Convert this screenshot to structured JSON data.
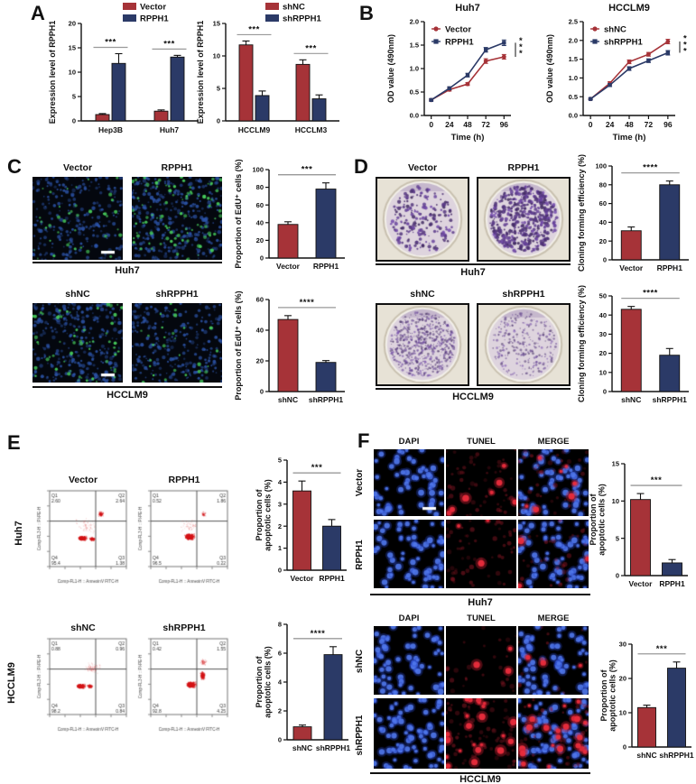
{
  "colors": {
    "red": "#A63338",
    "navy": "#2B3A67"
  },
  "panels": {
    "a": {
      "label": "A",
      "chart1": {
        "ylabel": "Expression level of RPPH1",
        "ylim": [
          0,
          20
        ],
        "yticks": [
          "0",
          "5",
          "10",
          "15",
          "20"
        ],
        "categories": [
          "Hep3B",
          "Huh7"
        ],
        "series": [
          {
            "name": "Vector",
            "color": "red",
            "values": [
              1.3,
              2.0
            ],
            "errors": [
              0.2,
              0.25
            ]
          },
          {
            "name": "RPPH1",
            "color": "navy",
            "values": [
              11.8,
              13.1
            ],
            "errors": [
              2.0,
              0.35
            ]
          }
        ],
        "sig": [
          "***",
          "***"
        ]
      },
      "chart2": {
        "ylabel": "Expression level of RPPH1",
        "ylim": [
          0,
          15
        ],
        "yticks": [
          "0",
          "5",
          "10",
          "15"
        ],
        "categories": [
          "HCCLM9",
          "HCCLM3"
        ],
        "series": [
          {
            "name": "shNC",
            "color": "red",
            "values": [
              11.7,
              8.7
            ],
            "errors": [
              0.6,
              0.7
            ]
          },
          {
            "name": "shRPPH1",
            "color": "navy",
            "values": [
              3.9,
              3.4
            ],
            "errors": [
              0.7,
              0.6
            ]
          }
        ],
        "sig": [
          "***",
          "***"
        ]
      }
    },
    "b": {
      "label": "B",
      "chart1": {
        "title": "Huh7",
        "ylabel": "OD value (490nm)",
        "xlabel": "Time (h)",
        "ylim": [
          0,
          2.0
        ],
        "yticks": [
          "0.0",
          "0.5",
          "1.0",
          "1.5",
          "2.0"
        ],
        "x": [
          "0",
          "24",
          "48",
          "72",
          "96"
        ],
        "series": [
          {
            "name": "Vector",
            "color": "red",
            "marker": "circle",
            "values": [
              0.33,
              0.55,
              0.67,
              1.16,
              1.25
            ],
            "errors": [
              0.02,
              0.03,
              0.03,
              0.05,
              0.05
            ]
          },
          {
            "name": "RPPH1",
            "color": "navy",
            "marker": "square",
            "values": [
              0.33,
              0.58,
              0.86,
              1.4,
              1.55
            ],
            "errors": [
              0.02,
              0.03,
              0.04,
              0.05,
              0.06
            ]
          }
        ],
        "sig": "***"
      },
      "chart2": {
        "title": "HCCLM9",
        "ylabel": "OD value (490nm)",
        "xlabel": "Time (h)",
        "ylim": [
          0,
          2.5
        ],
        "yticks": [
          "0.0",
          "0.5",
          "1.0",
          "1.5",
          "2.0",
          "2.5"
        ],
        "x": [
          "0",
          "24",
          "48",
          "72",
          "96"
        ],
        "series": [
          {
            "name": "shNC",
            "color": "red",
            "marker": "circle",
            "values": [
              0.44,
              0.86,
              1.43,
              1.63,
              1.97
            ],
            "errors": [
              0.02,
              0.04,
              0.05,
              0.05,
              0.06
            ]
          },
          {
            "name": "shRPPH1",
            "color": "navy",
            "marker": "square",
            "values": [
              0.44,
              0.81,
              1.25,
              1.46,
              1.67
            ],
            "errors": [
              0.02,
              0.04,
              0.05,
              0.05,
              0.06
            ]
          }
        ],
        "sig": "***"
      }
    },
    "c": {
      "label": "C",
      "blocks": [
        {
          "cell_line": "Huh7",
          "images": [
            {
              "title": "Vector"
            },
            {
              "title": "RPPH1"
            }
          ],
          "chart": {
            "ylabel": "Proportion of EdU⁺ cells (%)",
            "ylim": [
              0,
              100
            ],
            "yticks": [
              "0",
              "20",
              "40",
              "60",
              "80",
              "100"
            ],
            "bars": [
              {
                "label": "Vector",
                "color": "red",
                "value": 38,
                "error": 3
              },
              {
                "label": "RPPH1",
                "color": "navy",
                "value": 78,
                "error": 7
              }
            ],
            "sig": "***"
          }
        },
        {
          "cell_line": "HCCLM9",
          "images": [
            {
              "title": "shNC"
            },
            {
              "title": "shRPPH1"
            }
          ],
          "chart": {
            "ylabel": "Proportion of EdU⁺ cells (%)",
            "ylim": [
              0,
              60
            ],
            "yticks": [
              "0",
              "20",
              "40",
              "60"
            ],
            "bars": [
              {
                "label": "shNC",
                "color": "red",
                "value": 47,
                "error": 2.5
              },
              {
                "label": "shRPPH1",
                "color": "navy",
                "value": 19,
                "error": 1.2
              }
            ],
            "sig": "****"
          }
        }
      ]
    },
    "d": {
      "label": "D",
      "blocks": [
        {
          "cell_line": "Huh7",
          "images": [
            {
              "title": "Vector"
            },
            {
              "title": "RPPH1"
            }
          ],
          "chart": {
            "ylabel": "Cloning forming efficiency (%)",
            "ylim": [
              0,
              100
            ],
            "yticks": [
              "0",
              "20",
              "40",
              "60",
              "80",
              "100"
            ],
            "bars": [
              {
                "label": "Vector",
                "color": "red",
                "value": 31,
                "error": 4
              },
              {
                "label": "RPPH1",
                "color": "navy",
                "value": 80,
                "error": 4
              }
            ],
            "sig": "****"
          }
        },
        {
          "cell_line": "HCCLM9",
          "images": [
            {
              "title": "shNC"
            },
            {
              "title": "shRPPH1"
            }
          ],
          "chart": {
            "ylabel": "Cloning forming efficiency (%)",
            "ylim": [
              0,
              50
            ],
            "yticks": [
              "0",
              "10",
              "20",
              "30",
              "40",
              "50"
            ],
            "bars": [
              {
                "label": "shNC",
                "color": "red",
                "value": 43,
                "error": 1.5
              },
              {
                "label": "shRPPH1",
                "color": "navy",
                "value": 19,
                "error": 3.5
              }
            ],
            "sig": "****"
          }
        }
      ]
    },
    "e": {
      "label": "E",
      "axis_x": "Comp-FL1-H :: AnnexinV FITC-H",
      "axis_y": "Comp-FL3-H :: PI-PE-H",
      "blocks": [
        {
          "cell_line": "Huh7",
          "plots": [
            {
              "title": "Vector",
              "q": {
                "q1": "2.60",
                "q2": "2.64",
                "q3": "1.38",
                "q4": "95.4"
              }
            },
            {
              "title": "RPPH1",
              "q": {
                "q1": "0.52",
                "q2": "1.86",
                "q3": "0.22",
                "q4": "96.5"
              }
            }
          ],
          "chart": {
            "ylabel": [
              "Proportion of",
              "apoptotic cells (%)"
            ],
            "ylim": [
              0,
              5
            ],
            "yticks": [
              "0",
              "1",
              "2",
              "3",
              "4",
              "5"
            ],
            "bars": [
              {
                "label": "Vector",
                "color": "red",
                "value": 3.6,
                "error": 0.45
              },
              {
                "label": "RPPH1",
                "color": "navy",
                "value": 2.0,
                "error": 0.3
              }
            ],
            "sig": "***"
          }
        },
        {
          "cell_line": "HCCLM9",
          "plots": [
            {
              "title": "shNC",
              "q": {
                "q1": "0.88",
                "q2": "0.96",
                "q3": "0.84",
                "q4": "98.2"
              }
            },
            {
              "title": "shRPPH1",
              "q": {
                "q1": "0.42",
                "q2": "1.55",
                "q3": "4.25",
                "q4": "92.8"
              }
            }
          ],
          "chart": {
            "ylabel": [
              "Proportion of",
              "apoptotic cells (%)"
            ],
            "ylim": [
              0,
              8
            ],
            "yticks": [
              "0",
              "2",
              "4",
              "6",
              "8"
            ],
            "bars": [
              {
                "label": "shNC",
                "color": "red",
                "value": 0.9,
                "error": 0.12
              },
              {
                "label": "shRPPH1",
                "color": "navy",
                "value": 5.9,
                "error": 0.55
              }
            ],
            "sig": "****"
          }
        }
      ]
    },
    "f": {
      "label": "F",
      "col_headers": [
        "DAPI",
        "TUNEL",
        "MERGE"
      ],
      "blocks": [
        {
          "cell_line": "Huh7",
          "rows": [
            {
              "label": "Vector"
            },
            {
              "label": "RPPH1"
            }
          ],
          "chart": {
            "ylabel": [
              "Proportion of",
              "apoptotic cells (%)"
            ],
            "ylim": [
              0,
              15
            ],
            "yticks": [
              "0",
              "5",
              "10",
              "15"
            ],
            "bars": [
              {
                "label": "Vector",
                "color": "red",
                "value": 10.2,
                "error": 0.8
              },
              {
                "label": "RPPH1",
                "color": "navy",
                "value": 1.7,
                "error": 0.45
              }
            ],
            "sig": "***"
          }
        },
        {
          "cell_line": "HCCLM9",
          "rows": [
            {
              "label": "shNC"
            },
            {
              "label": "shRPPH1"
            }
          ],
          "chart": {
            "ylabel": [
              "Proportion of",
              "apoptotic cells (%)"
            ],
            "ylim": [
              0,
              30
            ],
            "yticks": [
              "0",
              "10",
              "20",
              "30"
            ],
            "bars": [
              {
                "label": "shNC",
                "color": "red",
                "value": 11.5,
                "error": 0.7
              },
              {
                "label": "shRPPH1",
                "color": "navy",
                "value": 23,
                "error": 1.8
              }
            ],
            "sig": "***"
          }
        }
      ]
    }
  }
}
